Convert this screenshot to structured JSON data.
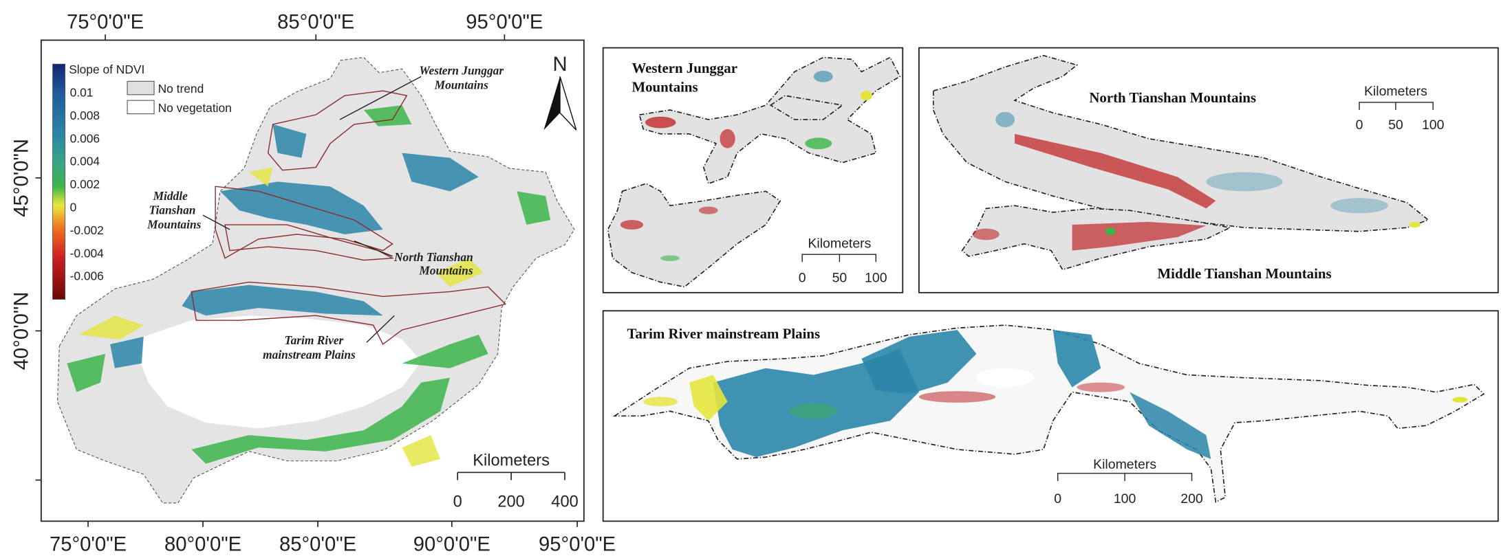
{
  "main_map": {
    "top_axis_labels": [
      "75°0'0\"E",
      "85°0'0\"E",
      "95°0'0\"E"
    ],
    "bottom_axis_labels": [
      "75°0'0\"E",
      "80°0'0\"E",
      "85°0'0\"E",
      "90°0'0\"E",
      "95°0'0\"E"
    ],
    "left_axis_labels": [
      "45°0'0\"N",
      "40°0'0\"N"
    ],
    "legend": {
      "title": "Slope of NDVI",
      "ramp_labels": [
        0.01,
        0.008,
        0.006,
        0.004,
        0.002,
        0,
        -0.002,
        -0.004,
        -0.006
      ],
      "no_trend": "No trend",
      "no_vegetation": "No vegetation"
    },
    "north_arrow": "N",
    "region_labels": {
      "western_junggar": [
        "Western Junggar",
        "Mountains"
      ],
      "middle_tianshan": [
        "Middle",
        "Tianshan",
        "Mountains"
      ],
      "north_tianshan": [
        "North Tianshan",
        "Mountains"
      ],
      "tarim": [
        "Tarim River",
        "mainstream Plains"
      ]
    },
    "scale_bar": {
      "title": "Kilometers",
      "labels": [
        0,
        200,
        400
      ]
    }
  },
  "insets": {
    "western_junggar": {
      "title": [
        "Western Junggar",
        "Mountains"
      ],
      "scale_bar": {
        "title": "Kilometers",
        "labels": [
          0,
          50,
          100
        ]
      }
    },
    "tianshan": {
      "title_north": "North Tianshan Mountains",
      "title_middle": "Middle Tianshan Mountains",
      "scale_bar": {
        "title": "Kilometers",
        "labels": [
          0,
          50,
          100
        ]
      }
    },
    "tarim": {
      "title": "Tarim River mainstream Plains",
      "scale_bar": {
        "title": "Kilometers",
        "labels": [
          0,
          100,
          200
        ]
      }
    }
  }
}
